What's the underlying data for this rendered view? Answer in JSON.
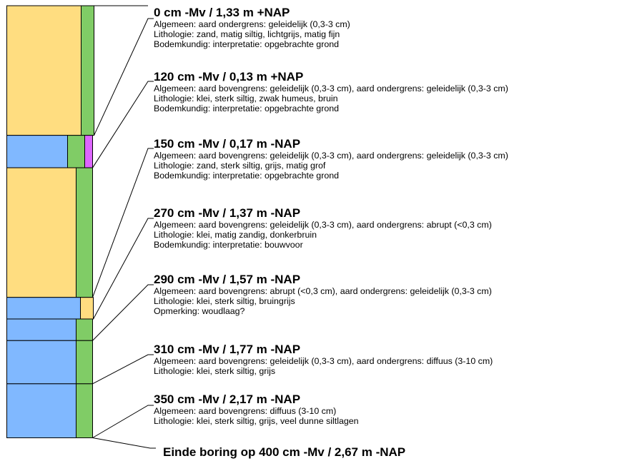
{
  "boring": {
    "depth_min_cm": 0,
    "depth_max_cm": 400,
    "colors": {
      "zand": "#FFDD80",
      "klei": "#80B8FF",
      "silt": "#80CC66",
      "humus": "#DD66FF",
      "outline": "#000000"
    },
    "column": [
      {
        "top_cm": 0,
        "bottom_cm": 120,
        "main": "zand",
        "side": [
          "silt"
        ]
      },
      {
        "top_cm": 120,
        "bottom_cm": 150,
        "main": "klei",
        "side": [
          "silt",
          "humus"
        ]
      },
      {
        "top_cm": 150,
        "bottom_cm": 270,
        "main": "zand",
        "side": [
          "silt"
        ]
      },
      {
        "top_cm": 270,
        "bottom_cm": 290,
        "main": "klei",
        "side": [
          "zand"
        ]
      },
      {
        "top_cm": 290,
        "bottom_cm": 310,
        "main": "klei",
        "side": [
          "silt"
        ]
      },
      {
        "top_cm": 310,
        "bottom_cm": 350,
        "main": "klei",
        "side": [
          "silt"
        ]
      },
      {
        "top_cm": 350,
        "bottom_cm": 400,
        "main": "klei",
        "side": [
          "silt"
        ]
      }
    ]
  },
  "layers": [
    {
      "title": "0 cm -Mv / 1,33 m +NAP",
      "lines": [
        "Algemeen: aard ondergrens: geleidelijk (0,3-3 cm)",
        "Lithologie: zand, matig siltig, lichtgrijs, matig fijn",
        "Bodemkundig: interpretatie: opgebrachte grond"
      ]
    },
    {
      "title": "120 cm -Mv / 0,13 m +NAP",
      "lines": [
        "Algemeen: aard bovengrens: geleidelijk (0,3-3 cm), aard ondergrens: geleidelijk (0,3-3 cm)",
        "Lithologie: klei, sterk siltig, zwak humeus, bruin",
        "Bodemkundig: interpretatie: opgebrachte grond"
      ]
    },
    {
      "title": "150 cm -Mv / 0,17 m -NAP",
      "lines": [
        "Algemeen: aard bovengrens: geleidelijk (0,3-3 cm), aard ondergrens: geleidelijk (0,3-3 cm)",
        "Lithologie: zand, sterk siltig, grijs, matig grof",
        "Bodemkundig: interpretatie: opgebrachte grond"
      ]
    },
    {
      "title": "270 cm -Mv / 1,37 m -NAP",
      "lines": [
        "Algemeen: aard bovengrens: geleidelijk (0,3-3 cm), aard ondergrens: abrupt (<0,3 cm)",
        "Lithologie: klei, matig zandig, donkerbruin",
        "Bodemkundig: interpretatie: bouwvoor"
      ]
    },
    {
      "title": "290 cm -Mv / 1,57 m -NAP",
      "lines": [
        "Algemeen: aard bovengrens: abrupt (<0,3 cm), aard ondergrens: geleidelijk (0,3-3 cm)",
        "Lithologie: klei, sterk siltig, bruingrijs",
        "Opmerking: woudlaag?"
      ]
    },
    {
      "title": "310 cm -Mv / 1,77 m -NAP",
      "lines": [
        "Algemeen: aard bovengrens: geleidelijk (0,3-3 cm), aard ondergrens: diffuus (3-10 cm)",
        "Lithologie: klei, sterk siltig, grijs"
      ]
    },
    {
      "title": "350 cm -Mv / 2,17 m -NAP",
      "lines": [
        "Algemeen: aard bovengrens: diffuus (3-10 cm)",
        "Lithologie: klei, sterk siltig, grijs, veel dunne siltlagen"
      ]
    }
  ],
  "end_label": "Einde boring op 400 cm -Mv / 2,67 m -NAP"
}
